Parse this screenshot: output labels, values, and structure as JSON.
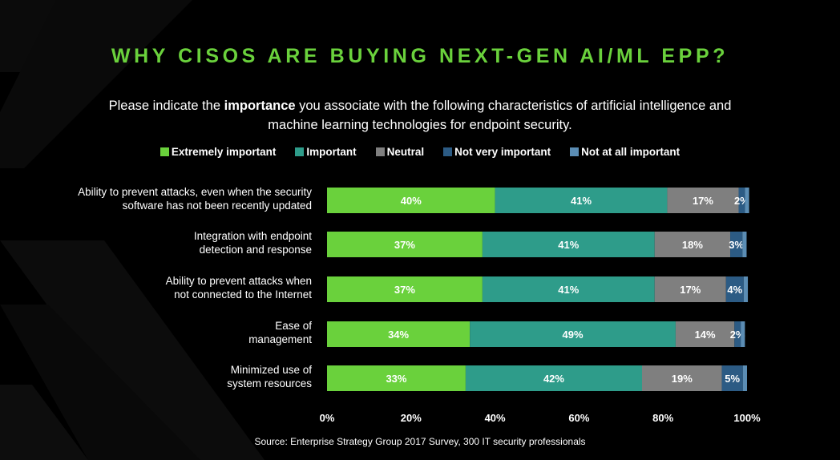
{
  "title": "WHY CISOS ARE BUYING NEXT-GEN AI/ML EPP?",
  "subtitle": {
    "before": "Please indicate the ",
    "emphasis": "importance",
    "after": " you associate with the following characteristics of artificial intelligence and machine learning technologies for endpoint security."
  },
  "source": "Source: Enterprise Strategy Group  2017 Survey, 300 IT security professionals",
  "colors": {
    "extremely": "#6ad13c",
    "important": "#2e9c8a",
    "neutral": "#7f7f7f",
    "not_very": "#2c5b84",
    "not_at_all": "#5b8db4"
  },
  "chart_data": {
    "type": "bar",
    "orientation": "horizontal",
    "stacked": true,
    "categories": [
      [
        "Ability to prevent attacks, even when the security",
        "software has not been recently updated"
      ],
      [
        "Integration with endpoint",
        "detection and response"
      ],
      [
        "Ability to prevent attacks when",
        "not connected to the Internet"
      ],
      [
        "Ease of",
        "management"
      ],
      [
        "Minimized use of",
        "system resources"
      ]
    ],
    "series": [
      {
        "name": "Extremely important",
        "color": "#6ad13c",
        "values": [
          40,
          37,
          37,
          34,
          33
        ],
        "labels": [
          "40%",
          "37%",
          "37%",
          "34%",
          "33%"
        ]
      },
      {
        "name": "Important",
        "color": "#2e9c8a",
        "values": [
          41,
          41,
          41,
          49,
          42
        ],
        "labels": [
          "41%",
          "41%",
          "41%",
          "49%",
          "42%"
        ]
      },
      {
        "name": "Neutral",
        "color": "#7f7f7f",
        "values": [
          17,
          18,
          17,
          14,
          19
        ],
        "labels": [
          "17%",
          "18%",
          "17%",
          "14%",
          "19%"
        ]
      },
      {
        "name": "Not very important",
        "color": "#2c5b84",
        "values": [
          1.5,
          2.9,
          4.2,
          1.5,
          5
        ],
        "labels": [
          "2%",
          "3%",
          "4%",
          "2%",
          "5%"
        ]
      },
      {
        "name": "Not at all important",
        "color": "#5b8db4",
        "values": [
          1,
          1,
          1,
          1,
          1
        ],
        "labels": [
          "",
          "",
          "",
          "",
          ""
        ]
      }
    ],
    "xlim": [
      0,
      100
    ],
    "xticks": [
      "0%",
      "20%",
      "40%",
      "60%",
      "80%",
      "100%"
    ],
    "grid": false,
    "legend_position": "top"
  }
}
